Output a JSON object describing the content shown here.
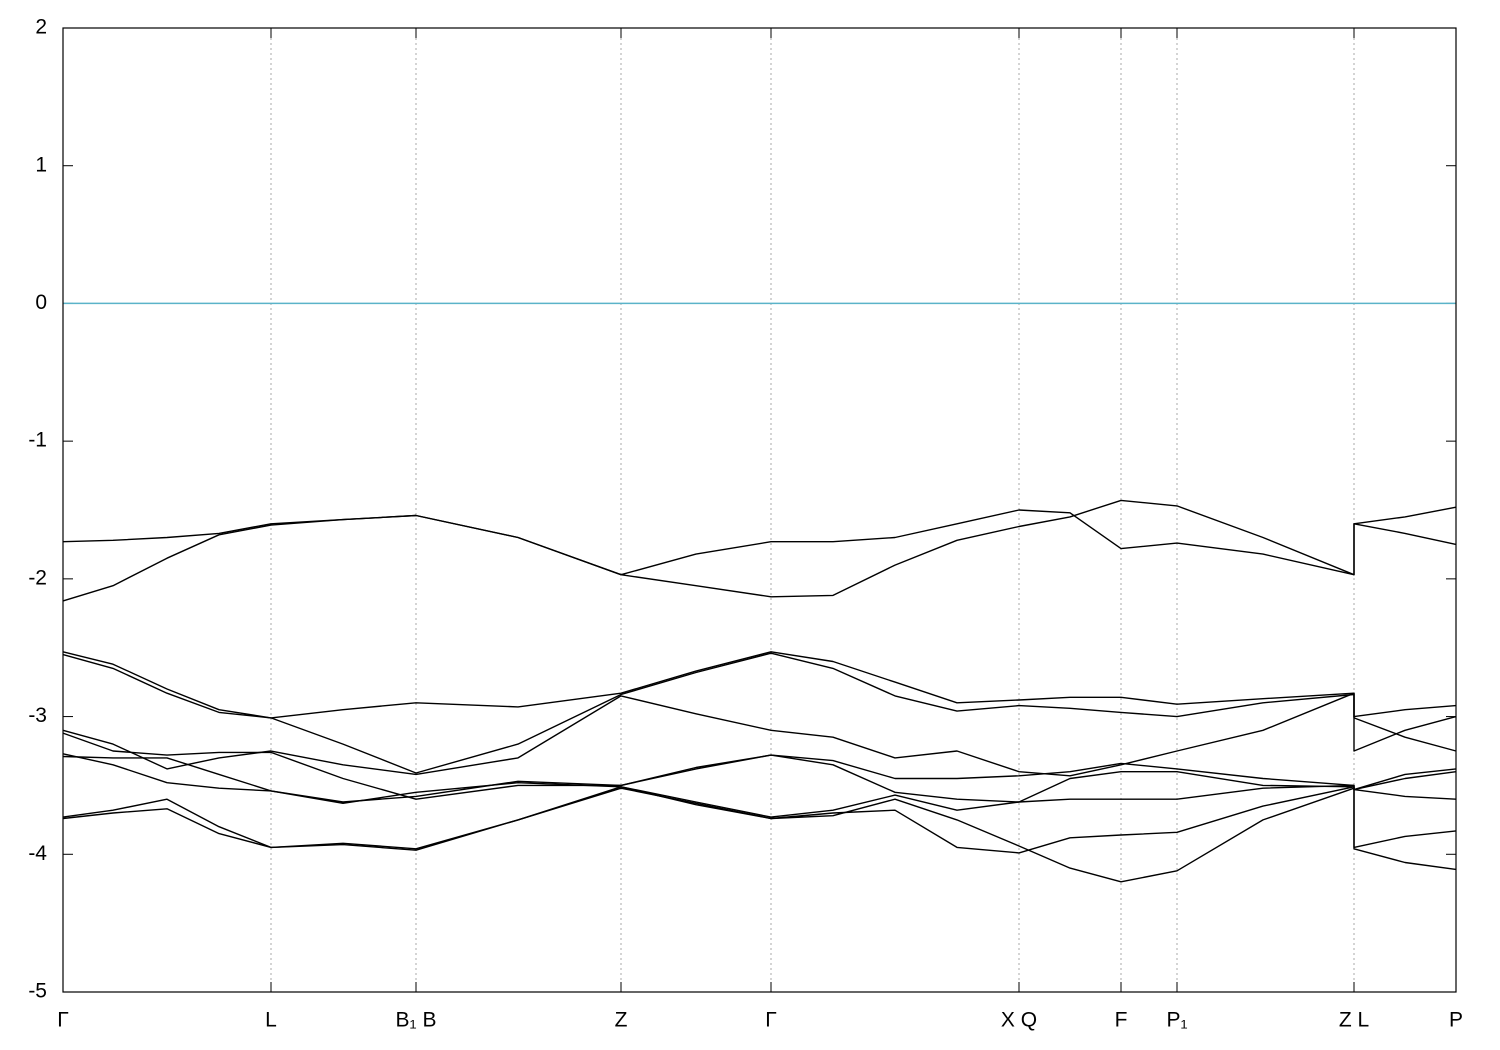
{
  "chart_data": {
    "type": "line",
    "x": [
      0,
      50,
      104,
      156,
      208,
      280,
      353,
      455,
      558,
      633,
      708,
      770,
      832,
      894,
      956,
      1007,
      1058,
      1114,
      1200,
      1291,
      1291,
      1342,
      1393
    ],
    "xlim": [
      0,
      1393
    ],
    "xticks": [
      {
        "value": 0,
        "label": "Γ"
      },
      {
        "value": 208,
        "label": "L"
      },
      {
        "value": 353,
        "label": "B₁ B"
      },
      {
        "value": 558,
        "label": "Z"
      },
      {
        "value": 708,
        "label": "Γ"
      },
      {
        "value": 956,
        "label": "X Q"
      },
      {
        "value": 1058,
        "label": "F"
      },
      {
        "value": 1114,
        "label": "P₁"
      },
      {
        "value": 1291,
        "label": "Z L"
      },
      {
        "value": 1393,
        "label": "P"
      }
    ],
    "ylim": [
      -5,
      2
    ],
    "yticks": [
      -5,
      -4,
      -3,
      -2,
      -1,
      0,
      1,
      2
    ],
    "grid": true,
    "reference_line": {
      "value": 0,
      "color": "#5ab3c9"
    },
    "series": [
      {
        "color": "#000000",
        "values": [
          -1.73,
          -1.72,
          -1.7,
          -1.67,
          -1.6,
          -1.57,
          -1.54,
          -1.7,
          -1.97,
          -1.82,
          -1.73,
          -1.73,
          -1.7,
          -1.6,
          -1.5,
          -1.52,
          -1.78,
          -1.74,
          -1.82,
          -1.97,
          -1.6,
          -1.55,
          -1.48
        ]
      },
      {
        "color": "#000000",
        "values": [
          -2.16,
          -2.05,
          -1.85,
          -1.68,
          -1.61,
          -1.57,
          -1.54,
          -1.7,
          -1.97,
          -2.05,
          -2.13,
          -2.12,
          -1.9,
          -1.72,
          -1.62,
          -1.55,
          -1.43,
          -1.47,
          -1.7,
          -1.97,
          -1.6,
          -1.67,
          -1.75
        ]
      },
      {
        "color": "#000000",
        "values": [
          -2.53,
          -2.62,
          -2.8,
          -2.95,
          -3.01,
          -2.95,
          -2.9,
          -2.93,
          -2.83,
          -2.67,
          -2.53,
          -2.6,
          -2.75,
          -2.9,
          -2.88,
          -2.86,
          -2.86,
          -2.91,
          -2.87,
          -2.83,
          -3.0,
          -2.95,
          -2.92
        ]
      },
      {
        "color": "#000000",
        "values": [
          -2.55,
          -2.65,
          -2.83,
          -2.97,
          -3.01,
          -3.2,
          -3.41,
          -3.2,
          -2.84,
          -2.68,
          -2.54,
          -2.65,
          -2.85,
          -2.96,
          -2.92,
          -2.94,
          -2.97,
          -3.0,
          -2.9,
          -2.84,
          -3.01,
          -3.15,
          -3.25
        ]
      },
      {
        "color": "#000000",
        "values": [
          -3.1,
          -3.2,
          -3.38,
          -3.3,
          -3.25,
          -3.35,
          -3.42,
          -3.3,
          -2.85,
          -2.98,
          -3.1,
          -3.15,
          -3.3,
          -3.25,
          -3.4,
          -3.43,
          -3.35,
          -3.25,
          -3.1,
          -2.83,
          -3.25,
          -3.1,
          -3.0
        ]
      },
      {
        "color": "#000000",
        "values": [
          -3.12,
          -3.25,
          -3.28,
          -3.26,
          -3.26,
          -3.45,
          -3.6,
          -3.5,
          -3.5,
          -3.38,
          -3.28,
          -3.32,
          -3.45,
          -3.45,
          -3.43,
          -3.4,
          -3.34,
          -3.38,
          -3.45,
          -3.5,
          -3.53,
          -3.42,
          -3.38
        ]
      },
      {
        "color": "#000000",
        "values": [
          -3.27,
          -3.35,
          -3.48,
          -3.52,
          -3.54,
          -3.62,
          -3.58,
          -3.47,
          -3.5,
          -3.37,
          -3.28,
          -3.35,
          -3.55,
          -3.6,
          -3.62,
          -3.6,
          -3.6,
          -3.6,
          -3.52,
          -3.5,
          -3.53,
          -3.58,
          -3.6
        ]
      },
      {
        "color": "#000000",
        "values": [
          -3.29,
          -3.3,
          -3.3,
          -3.42,
          -3.54,
          -3.63,
          -3.55,
          -3.48,
          -3.51,
          -3.62,
          -3.73,
          -3.68,
          -3.57,
          -3.68,
          -3.62,
          -3.45,
          -3.4,
          -3.4,
          -3.5,
          -3.51,
          -3.53,
          -3.45,
          -3.4
        ]
      },
      {
        "color": "#000000",
        "values": [
          -3.73,
          -3.68,
          -3.6,
          -3.8,
          -3.95,
          -3.92,
          -3.96,
          -3.75,
          -3.51,
          -3.64,
          -3.74,
          -3.7,
          -3.68,
          -3.95,
          -3.99,
          -3.88,
          -3.86,
          -3.84,
          -3.65,
          -3.51,
          -3.95,
          -3.87,
          -3.83
        ]
      },
      {
        "color": "#000000",
        "values": [
          -3.74,
          -3.7,
          -3.67,
          -3.85,
          -3.95,
          -3.93,
          -3.97,
          -3.75,
          -3.52,
          -3.63,
          -3.74,
          -3.72,
          -3.6,
          -3.75,
          -3.94,
          -4.1,
          -4.2,
          -4.12,
          -3.75,
          -3.52,
          -3.96,
          -4.06,
          -4.11
        ]
      }
    ]
  }
}
